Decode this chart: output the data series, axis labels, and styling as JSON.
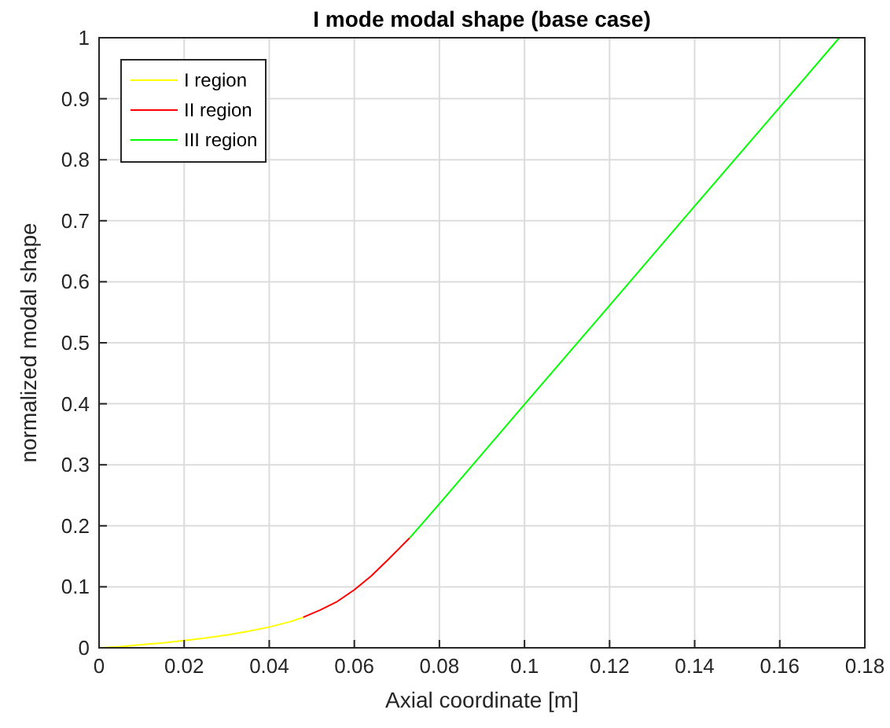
{
  "chart_data": {
    "type": "line",
    "title": "I mode modal shape (base case)",
    "xlabel": "Axial coordinate [m]",
    "ylabel": "normalized modal shape",
    "xlim": [
      0,
      0.18
    ],
    "ylim": [
      0,
      1
    ],
    "xticks": [
      0,
      0.02,
      0.04,
      0.06,
      0.08,
      0.1,
      0.12,
      0.14,
      0.16,
      0.18
    ],
    "yticks": [
      0,
      0.1,
      0.2,
      0.3,
      0.4,
      0.5,
      0.6,
      0.7,
      0.8,
      0.9,
      1
    ],
    "grid": true,
    "legend": "top left",
    "marker": "none",
    "line_style": "solid",
    "series": [
      {
        "name": "I region",
        "color": "#ffff00",
        "x": [
          0,
          0.005,
          0.01,
          0.015,
          0.02,
          0.025,
          0.03,
          0.035,
          0.04,
          0.045,
          0.048
        ],
        "values": [
          0,
          0.002,
          0.005,
          0.008,
          0.012,
          0.016,
          0.021,
          0.027,
          0.034,
          0.043,
          0.05
        ]
      },
      {
        "name": "II region",
        "color": "#ff0000",
        "x": [
          0.048,
          0.052,
          0.056,
          0.06,
          0.064,
          0.068,
          0.073
        ],
        "values": [
          0.05,
          0.062,
          0.076,
          0.095,
          0.118,
          0.145,
          0.18
        ]
      },
      {
        "name": "III region",
        "color": "#00ff00",
        "x": [
          0.073,
          0.08,
          0.1,
          0.12,
          0.14,
          0.16,
          0.174
        ],
        "values": [
          0.18,
          0.236,
          0.399,
          0.561,
          0.724,
          0.886,
          1
        ]
      }
    ]
  }
}
